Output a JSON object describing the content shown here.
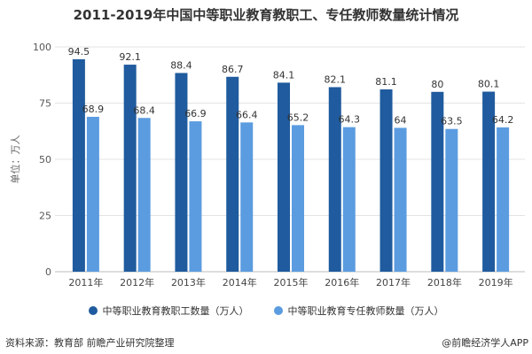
{
  "chart_data": {
    "type": "bar",
    "title": "2011-2019年中国中等职业教育教职工、专任教师数量统计情况",
    "ylabel": "单位：万人",
    "xlabel": "",
    "ylim": [
      0,
      100
    ],
    "yticks": [
      0,
      25,
      50,
      75,
      100
    ],
    "grid": true,
    "legend_position": "bottom",
    "categories": [
      "2011年",
      "2012年",
      "2013年",
      "2014年",
      "2015年",
      "2016年",
      "2017年",
      "2018年",
      "2019年"
    ],
    "series": [
      {
        "name": "中等职业教育教职工数量（万人）",
        "color": "#1f5b9e",
        "values": [
          94.5,
          92.1,
          88.4,
          86.7,
          84.1,
          82.1,
          81.1,
          80,
          80.1
        ]
      },
      {
        "name": "中等职业教育专任教师数量（万人）",
        "color": "#5b9ce0",
        "values": [
          68.9,
          68.4,
          66.9,
          66.4,
          65.2,
          64.3,
          64,
          63.5,
          64.2
        ]
      }
    ]
  },
  "footer": {
    "source": "资料来源：教育部 前瞻产业研究院整理",
    "credit": "@前瞻经济学人APP"
  }
}
